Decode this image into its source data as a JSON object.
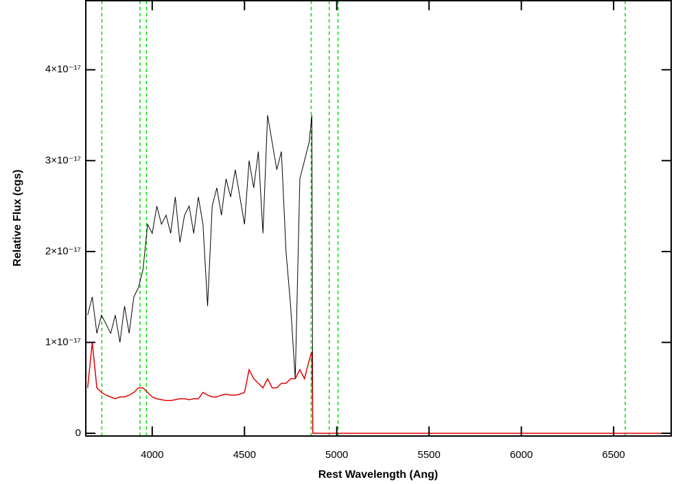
{
  "chart_data": {
    "type": "line",
    "xlabel": "Rest Wavelength (Ang)",
    "ylabel": "Relative Flux (cgs)",
    "x": [
      3650,
      3675,
      3700,
      3725,
      3750,
      3775,
      3800,
      3825,
      3850,
      3875,
      3900,
      3925,
      3950,
      3975,
      4000,
      4025,
      4050,
      4075,
      4100,
      4125,
      4150,
      4175,
      4200,
      4225,
      4250,
      4275,
      4300,
      4325,
      4350,
      4375,
      4400,
      4425,
      4450,
      4475,
      4500,
      4525,
      4550,
      4575,
      4600,
      4625,
      4650,
      4675,
      4700,
      4725,
      4750,
      4775,
      4800,
      4825,
      4850,
      4865,
      4870,
      6810
    ],
    "series": [
      {
        "color": "#000000",
        "values": [
          1.3e-17,
          1.5e-17,
          1.1e-17,
          1.3e-17,
          1.2e-17,
          1.1e-17,
          1.3e-17,
          1e-17,
          1.4e-17,
          1.1e-17,
          1.5e-17,
          1.6e-17,
          1.8e-17,
          2.3e-17,
          2.2e-17,
          2.5e-17,
          2.3e-17,
          2.4e-17,
          2.2e-17,
          2.6e-17,
          2.1e-17,
          2.4e-17,
          2.5e-17,
          2.2e-17,
          2.6e-17,
          2.3e-17,
          1.4e-17,
          2.5e-17,
          2.7e-17,
          2.4e-17,
          2.8e-17,
          2.6e-17,
          2.9e-17,
          2.6e-17,
          2.3e-17,
          3e-17,
          2.7e-17,
          3.1e-17,
          2.2e-17,
          3.5e-17,
          3.2e-17,
          2.9e-17,
          3.1e-17,
          2e-17,
          1.4e-17,
          6e-18,
          2.8e-17,
          3e-17,
          3.2e-17,
          3.5e-17,
          0,
          0
        ]
      },
      {
        "color": "#e00000",
        "values": [
          5e-18,
          1e-17,
          5e-18,
          4.5e-18,
          4.2e-18,
          4e-18,
          3.8e-18,
          4e-18,
          4e-18,
          4.2e-18,
          4.5e-18,
          5e-18,
          5e-18,
          4.5e-18,
          4e-18,
          3.8e-18,
          3.7e-18,
          3.6e-18,
          3.6e-18,
          3.7e-18,
          3.8e-18,
          3.8e-18,
          3.7e-18,
          3.8e-18,
          3.8e-18,
          4.5e-18,
          4.2e-18,
          4e-18,
          4e-18,
          4.2e-18,
          4.3e-18,
          4.2e-18,
          4.2e-18,
          4.3e-18,
          4.5e-18,
          7e-18,
          6e-18,
          5.5e-18,
          5e-18,
          6e-18,
          5e-18,
          5e-18,
          5.5e-18,
          5.5e-18,
          6e-18,
          6e-18,
          7e-18,
          6e-18,
          8e-18,
          9e-18,
          0,
          0
        ]
      }
    ],
    "vlines": {
      "color": "#00dd00",
      "values": [
        3727,
        3934,
        3969,
        4861,
        4959,
        5007,
        6563
      ]
    },
    "xlim": [
      3640,
      6812
    ],
    "ylim": [
      -3e-19,
      4.76e-17
    ],
    "xticks": [
      4000,
      4500,
      5000,
      5500,
      6000,
      6500
    ],
    "yticks": [
      0,
      {
        "value": 1e-17,
        "label": "1×10⁻¹⁷"
      },
      {
        "value": 2e-17,
        "label": "2×10⁻¹⁷"
      },
      {
        "value": 3e-17,
        "label": "3×10⁻¹⁷"
      },
      {
        "value": 4e-17,
        "label": "4×10⁻¹⁷"
      }
    ]
  }
}
